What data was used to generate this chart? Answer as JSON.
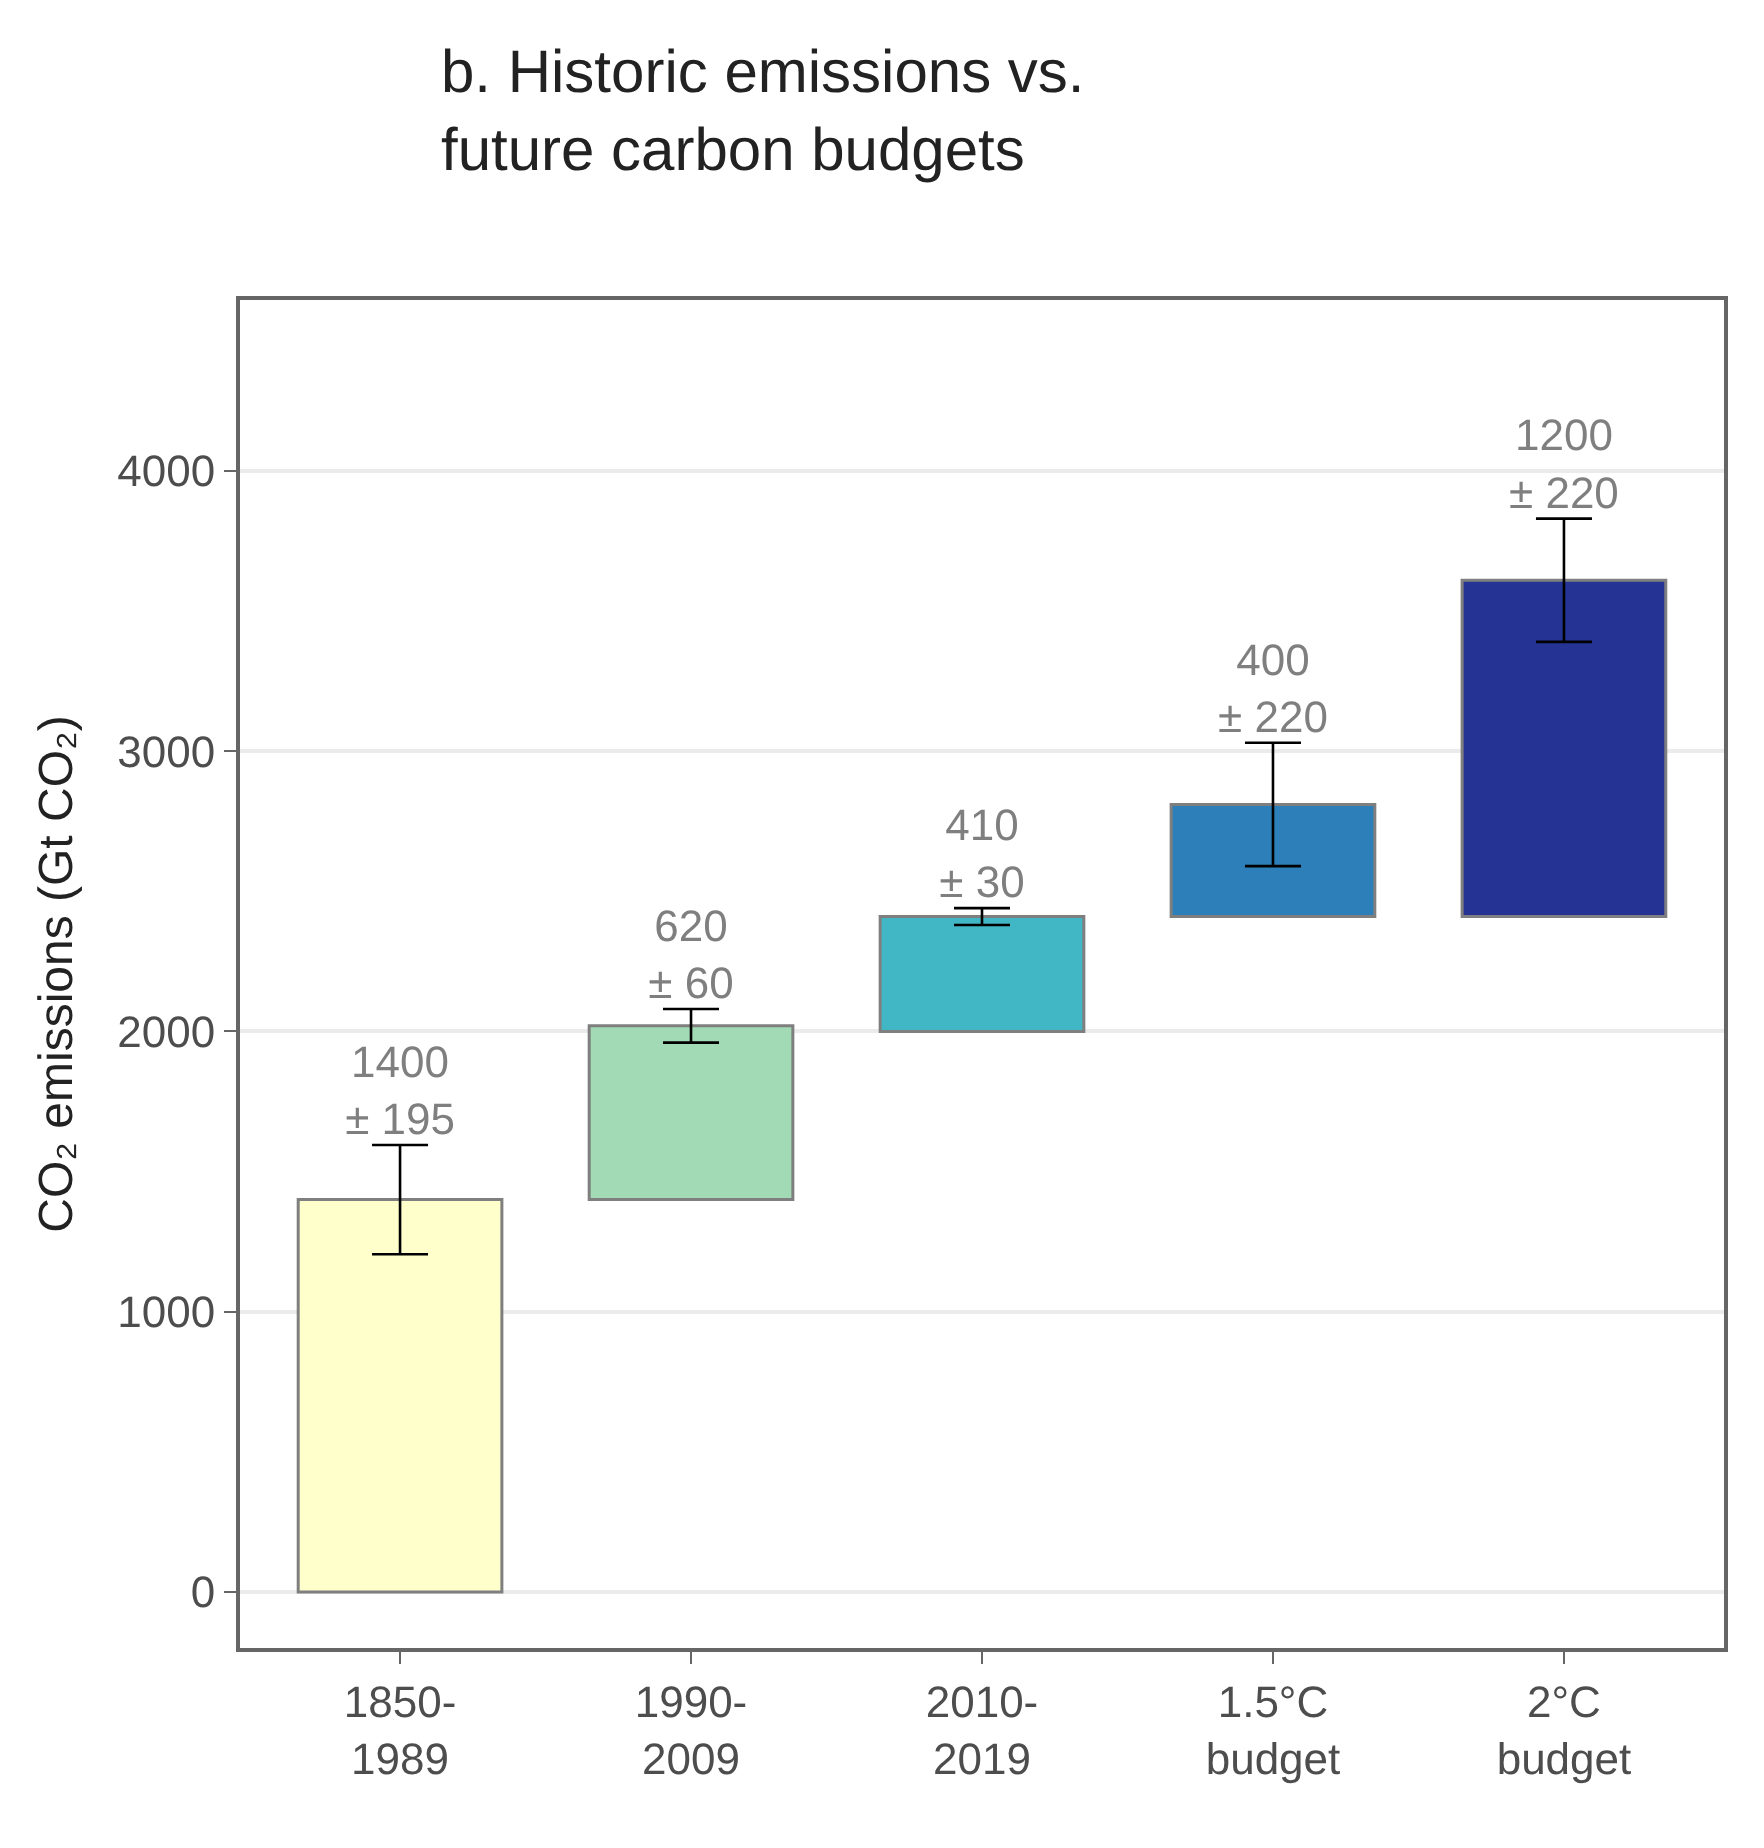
{
  "chart_data": {
    "type": "bar",
    "title": "b. Historic emissions vs.\nfuture carbon budgets",
    "ylabel": "CO₂ emissions (Gt CO₂)",
    "categories": [
      "1850-\n1989",
      "1990-\n2009",
      "2010-\n2019",
      "1.5°C\nbudget",
      "2°C\nbudget"
    ],
    "values": [
      1400,
      620,
      410,
      400,
      1200
    ],
    "base": [
      0,
      1400,
      2000,
      2410,
      2410
    ],
    "errors": [
      195,
      60,
      30,
      220,
      220
    ],
    "value_labels": [
      "1400\n± 195",
      "620\n± 60",
      "410\n± 30",
      "400\n± 220",
      "1200\n± 220"
    ],
    "colors": [
      "#ffffcc",
      "#a1dab4",
      "#41b6c4",
      "#2c7fb8",
      "#253494"
    ],
    "ylim": [
      -200,
      4610
    ],
    "yticks": [
      0,
      1000,
      2000,
      3000,
      4000
    ],
    "grid": "y"
  }
}
